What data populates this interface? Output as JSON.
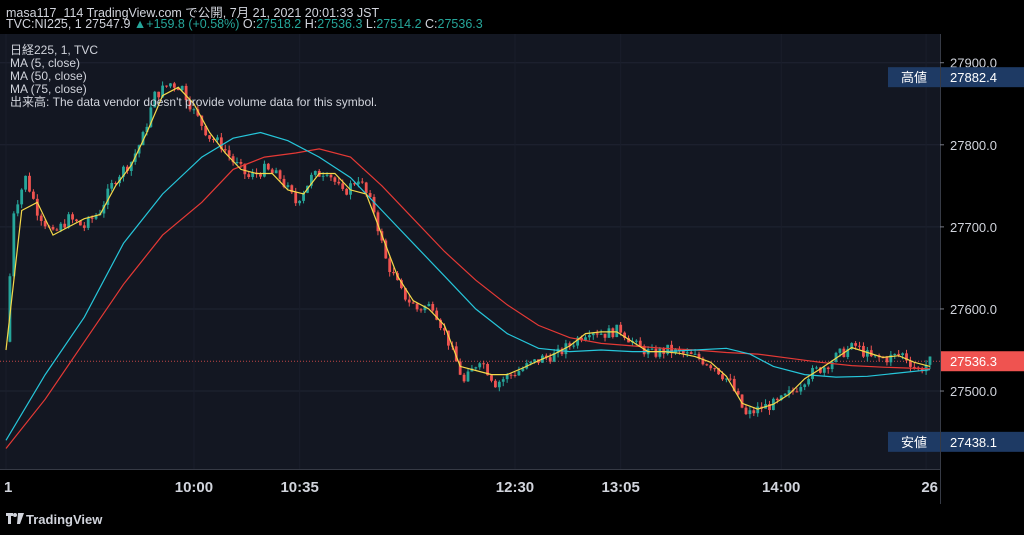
{
  "header": {
    "line1": "masa117_114 TradingView.com で公開, 7月 21, 2021 20:01:33 JST",
    "symbol": "TVC:NI225, 1",
    "last": "27547.9",
    "arrow": "▲",
    "change": "+159.8 (+0.58%)",
    "o_label": "O:",
    "o_value": "27518.2",
    "h_label": "H:",
    "h_value": "27536.3",
    "l_label": "L:",
    "l_value": "27514.2",
    "c_label": "C:",
    "c_value": "27536.3"
  },
  "legend": {
    "title": "日経225, 1, TVC",
    "ma1": "MA (5, close)",
    "ma2": "MA (50, close)",
    "ma3": "MA (75, close)",
    "volume_note": "出来高: The data vendor doesn't provide volume data for this symbol."
  },
  "footer": {
    "brand": "TradingView",
    "logo_icon": "tradingview-logo-icon"
  },
  "colors": {
    "background": "#131722",
    "up": "#26a69a",
    "down": "#ef5350",
    "ma5": "#f5d94a",
    "ma50": "#26c6da",
    "ma75": "#e53935",
    "label_box": "#1e3a64"
  },
  "chart_data": {
    "type": "candlestick",
    "y_ticks": [
      "27900.0",
      "27800.0",
      "27700.0",
      "27600.0",
      "27500.0"
    ],
    "ylim": [
      27405,
      27935
    ],
    "x_ticks": [
      "1",
      "10:00",
      "10:35",
      "12:30",
      "13:05",
      "14:00",
      "26"
    ],
    "current_price_label": "27536.3",
    "high_label": {
      "name": "高値",
      "value": "27882.4"
    },
    "low_label": {
      "name": "安値",
      "value": "27438.1"
    },
    "price_path": [
      [
        0,
        27560
      ],
      [
        2,
        27720
      ],
      [
        5,
        27760
      ],
      [
        8,
        27720
      ],
      [
        12,
        27690
      ],
      [
        16,
        27710
      ],
      [
        20,
        27700
      ],
      [
        24,
        27720
      ],
      [
        28,
        27760
      ],
      [
        32,
        27780
      ],
      [
        35,
        27810
      ],
      [
        38,
        27860
      ],
      [
        42,
        27875
      ],
      [
        45,
        27870
      ],
      [
        48,
        27840
      ],
      [
        52,
        27810
      ],
      [
        55,
        27800
      ],
      [
        58,
        27780
      ],
      [
        62,
        27760
      ],
      [
        66,
        27770
      ],
      [
        70,
        27760
      ],
      [
        74,
        27730
      ],
      [
        78,
        27760
      ],
      [
        82,
        27770
      ],
      [
        86,
        27740
      ],
      [
        90,
        27760
      ],
      [
        94,
        27720
      ],
      [
        97,
        27660
      ],
      [
        101,
        27620
      ],
      [
        105,
        27600
      ],
      [
        109,
        27605
      ],
      [
        113,
        27560
      ],
      [
        117,
        27510
      ],
      [
        121,
        27540
      ],
      [
        125,
        27510
      ],
      [
        129,
        27520
      ],
      [
        133,
        27530
      ],
      [
        137,
        27540
      ],
      [
        141,
        27545
      ],
      [
        145,
        27560
      ],
      [
        149,
        27575
      ],
      [
        153,
        27570
      ],
      [
        157,
        27575
      ],
      [
        161,
        27555
      ],
      [
        165,
        27545
      ],
      [
        169,
        27550
      ],
      [
        173,
        27545
      ],
      [
        177,
        27540
      ],
      [
        181,
        27530
      ],
      [
        185,
        27510
      ],
      [
        189,
        27470
      ],
      [
        193,
        27480
      ],
      [
        197,
        27485
      ],
      [
        201,
        27500
      ],
      [
        205,
        27520
      ],
      [
        209,
        27530
      ],
      [
        213,
        27545
      ],
      [
        217,
        27555
      ],
      [
        221,
        27540
      ],
      [
        225,
        27540
      ],
      [
        229,
        27545
      ],
      [
        233,
        27525
      ],
      [
        236,
        27536
      ]
    ],
    "ma5_path": [
      [
        0,
        27550
      ],
      [
        4,
        27720
      ],
      [
        8,
        27730
      ],
      [
        12,
        27690
      ],
      [
        16,
        27700
      ],
      [
        20,
        27710
      ],
      [
        24,
        27715
      ],
      [
        28,
        27750
      ],
      [
        32,
        27775
      ],
      [
        36,
        27815
      ],
      [
        40,
        27860
      ],
      [
        44,
        27870
      ],
      [
        48,
        27850
      ],
      [
        52,
        27815
      ],
      [
        56,
        27790
      ],
      [
        60,
        27770
      ],
      [
        64,
        27765
      ],
      [
        68,
        27765
      ],
      [
        72,
        27745
      ],
      [
        76,
        27740
      ],
      [
        80,
        27765
      ],
      [
        84,
        27765
      ],
      [
        88,
        27745
      ],
      [
        92,
        27740
      ],
      [
        96,
        27690
      ],
      [
        100,
        27640
      ],
      [
        104,
        27610
      ],
      [
        108,
        27600
      ],
      [
        112,
        27580
      ],
      [
        116,
        27530
      ],
      [
        120,
        27525
      ],
      [
        124,
        27520
      ],
      [
        128,
        27520
      ],
      [
        132,
        27528
      ],
      [
        136,
        27537
      ],
      [
        140,
        27545
      ],
      [
        144,
        27555
      ],
      [
        148,
        27570
      ],
      [
        152,
        27572
      ],
      [
        156,
        27572
      ],
      [
        160,
        27560
      ],
      [
        164,
        27548
      ],
      [
        168,
        27548
      ],
      [
        172,
        27546
      ],
      [
        176,
        27542
      ],
      [
        180,
        27535
      ],
      [
        184,
        27518
      ],
      [
        188,
        27485
      ],
      [
        192,
        27478
      ],
      [
        196,
        27484
      ],
      [
        200,
        27496
      ],
      [
        204,
        27515
      ],
      [
        208,
        27527
      ],
      [
        212,
        27540
      ],
      [
        216,
        27553
      ],
      [
        220,
        27547
      ],
      [
        224,
        27541
      ],
      [
        228,
        27543
      ],
      [
        232,
        27535
      ],
      [
        236,
        27530
      ]
    ],
    "ma50_path": [
      [
        0,
        27440
      ],
      [
        10,
        27520
      ],
      [
        20,
        27590
      ],
      [
        30,
        27680
      ],
      [
        40,
        27740
      ],
      [
        50,
        27785
      ],
      [
        58,
        27808
      ],
      [
        65,
        27815
      ],
      [
        72,
        27805
      ],
      [
        80,
        27785
      ],
      [
        88,
        27760
      ],
      [
        96,
        27720
      ],
      [
        104,
        27680
      ],
      [
        112,
        27640
      ],
      [
        120,
        27600
      ],
      [
        128,
        27570
      ],
      [
        136,
        27552
      ],
      [
        144,
        27548
      ],
      [
        152,
        27550
      ],
      [
        160,
        27548
      ],
      [
        168,
        27548
      ],
      [
        176,
        27550
      ],
      [
        184,
        27552
      ],
      [
        190,
        27545
      ],
      [
        196,
        27530
      ],
      [
        204,
        27520
      ],
      [
        212,
        27517
      ],
      [
        220,
        27518
      ],
      [
        228,
        27522
      ],
      [
        236,
        27526
      ]
    ],
    "ma75_path": [
      [
        0,
        27430
      ],
      [
        10,
        27490
      ],
      [
        20,
        27560
      ],
      [
        30,
        27630
      ],
      [
        40,
        27690
      ],
      [
        50,
        27730
      ],
      [
        58,
        27770
      ],
      [
        66,
        27785
      ],
      [
        74,
        27790
      ],
      [
        80,
        27795
      ],
      [
        88,
        27785
      ],
      [
        96,
        27750
      ],
      [
        104,
        27710
      ],
      [
        112,
        27670
      ],
      [
        120,
        27635
      ],
      [
        128,
        27605
      ],
      [
        136,
        27580
      ],
      [
        144,
        27565
      ],
      [
        152,
        27558
      ],
      [
        160,
        27555
      ],
      [
        168,
        27552
      ],
      [
        176,
        27550
      ],
      [
        184,
        27547
      ],
      [
        192,
        27545
      ],
      [
        200,
        27540
      ],
      [
        208,
        27535
      ],
      [
        216,
        27531
      ],
      [
        224,
        27529
      ],
      [
        230,
        27528
      ],
      [
        236,
        27527
      ]
    ]
  }
}
